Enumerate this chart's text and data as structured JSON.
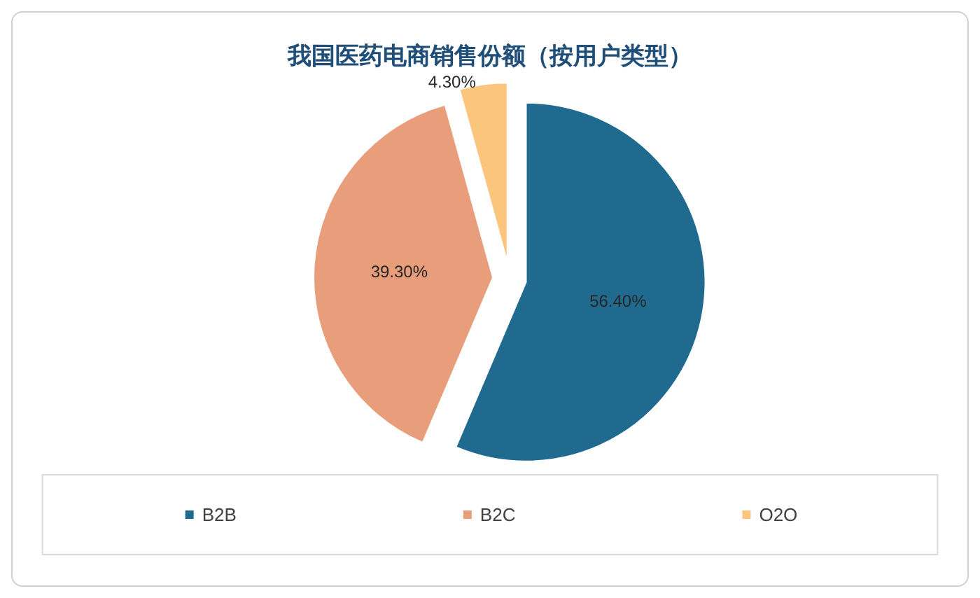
{
  "chart_data": {
    "type": "pie",
    "title": "我国医药电商销售份额（按用户类型）",
    "categories": [
      "B2B",
      "B2C",
      "O2O"
    ],
    "values": [
      56.4,
      39.3,
      4.3
    ],
    "colors": [
      "#1f6a8e",
      "#e89d7b",
      "#fbc57d"
    ],
    "value_labels": [
      "56.40%",
      "39.30%",
      "4.30%"
    ],
    "legend": "bottom"
  }
}
